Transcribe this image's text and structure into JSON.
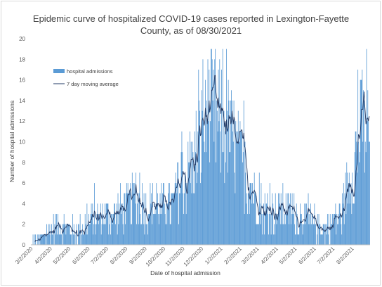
{
  "chart_data": {
    "type": "bar+line",
    "title_line1": "Epidemic curve of hospitalized COVID-19 cases reported in Lexington-Fayette",
    "title_line2": "County, as of 08/30/2021",
    "xlabel": "Date of hospital admission",
    "ylabel": "Number of hospital admissions",
    "ylim": [
      0,
      20
    ],
    "yticks": [
      "0",
      "2",
      "4",
      "6",
      "8",
      "10",
      "12",
      "14",
      "16",
      "18",
      "20"
    ],
    "x_start": "3/2/2020",
    "x_end": "8/30/2021",
    "xtick_labels": [
      "3/2/2020",
      "4/2/2020",
      "5/2/2020",
      "6/2/2020",
      "7/2/2020",
      "8/2/2020",
      "9/2/2020",
      "10/2/2020",
      "11/2/2020",
      "12/2/2020",
      "1/2/2021",
      "2/2/2021",
      "3/2/2021",
      "4/2/2021",
      "5/2/2021",
      "6/2/2021",
      "7/2/2021",
      "8/2/2021"
    ],
    "legend": {
      "position": "left inside",
      "bar_series": "hospital admissions",
      "line_series": "7 day moving average"
    },
    "colors": {
      "bars": "#5b9bd5",
      "line": "#203864"
    },
    "grid": false,
    "monthly_typical_daily_admissions": [
      {
        "month": "2020-03",
        "value": 0.4
      },
      {
        "month": "2020-04",
        "value": 2.0
      },
      {
        "month": "2020-05",
        "value": 1.2
      },
      {
        "month": "2020-06",
        "value": 2.6
      },
      {
        "month": "2020-07",
        "value": 3.0
      },
      {
        "month": "2020-08",
        "value": 4.2
      },
      {
        "month": "2020-09",
        "value": 3.6
      },
      {
        "month": "2020-10",
        "value": 3.8
      },
      {
        "month": "2020-11",
        "value": 7.5
      },
      {
        "month": "2020-12",
        "value": 12.5
      },
      {
        "month": "2021-01",
        "value": 11.0
      },
      {
        "month": "2021-02",
        "value": 6.0
      },
      {
        "month": "2021-03",
        "value": 3.0
      },
      {
        "month": "2021-04",
        "value": 3.4
      },
      {
        "month": "2021-05",
        "value": 2.6
      },
      {
        "month": "2021-06",
        "value": 1.5
      },
      {
        "month": "2021-07",
        "value": 2.8
      },
      {
        "month": "2021-08",
        "value": 11.0
      }
    ],
    "notable_daily_peaks": [
      {
        "date": "2020-12-04",
        "value": 18
      },
      {
        "date": "2020-12-12",
        "value": 18
      },
      {
        "date": "2020-12-24",
        "value": 19
      },
      {
        "date": "2021-08-18",
        "value": 17
      }
    ]
  }
}
